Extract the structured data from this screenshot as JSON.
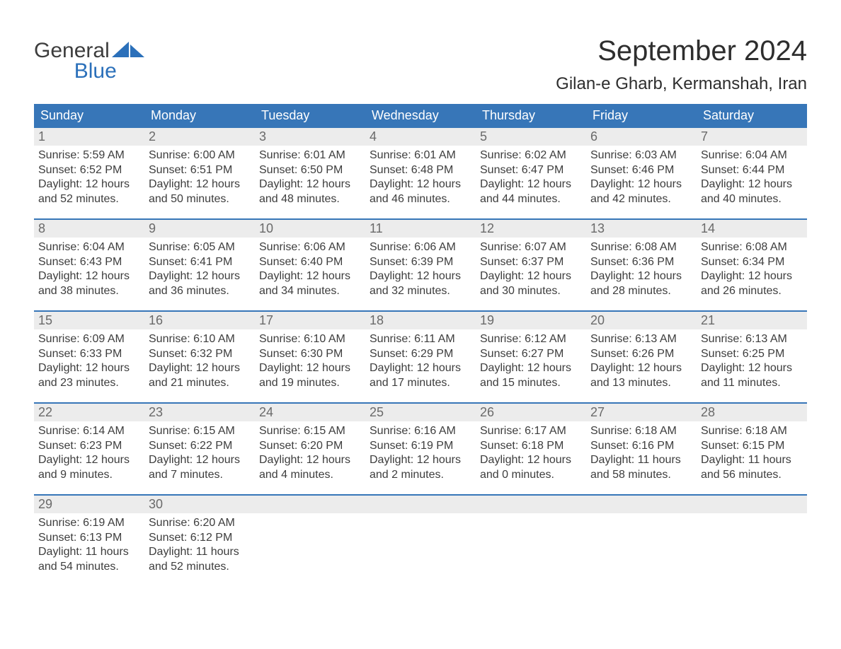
{
  "logo": {
    "word1": "General",
    "word2": "Blue"
  },
  "title": "September 2024",
  "location": "Gilan-e Gharb, Kermanshah, Iran",
  "colors": {
    "header_bg": "#3776b8",
    "daynum_bg": "#ececec",
    "text": "#3d3d3d",
    "white": "#ffffff"
  },
  "day_headers": [
    "Sunday",
    "Monday",
    "Tuesday",
    "Wednesday",
    "Thursday",
    "Friday",
    "Saturday"
  ],
  "weeks": [
    [
      {
        "n": "1",
        "sr": "Sunrise: 5:59 AM",
        "ss": "Sunset: 6:52 PM",
        "d1": "Daylight: 12 hours",
        "d2": "and 52 minutes."
      },
      {
        "n": "2",
        "sr": "Sunrise: 6:00 AM",
        "ss": "Sunset: 6:51 PM",
        "d1": "Daylight: 12 hours",
        "d2": "and 50 minutes."
      },
      {
        "n": "3",
        "sr": "Sunrise: 6:01 AM",
        "ss": "Sunset: 6:50 PM",
        "d1": "Daylight: 12 hours",
        "d2": "and 48 minutes."
      },
      {
        "n": "4",
        "sr": "Sunrise: 6:01 AM",
        "ss": "Sunset: 6:48 PM",
        "d1": "Daylight: 12 hours",
        "d2": "and 46 minutes."
      },
      {
        "n": "5",
        "sr": "Sunrise: 6:02 AM",
        "ss": "Sunset: 6:47 PM",
        "d1": "Daylight: 12 hours",
        "d2": "and 44 minutes."
      },
      {
        "n": "6",
        "sr": "Sunrise: 6:03 AM",
        "ss": "Sunset: 6:46 PM",
        "d1": "Daylight: 12 hours",
        "d2": "and 42 minutes."
      },
      {
        "n": "7",
        "sr": "Sunrise: 6:04 AM",
        "ss": "Sunset: 6:44 PM",
        "d1": "Daylight: 12 hours",
        "d2": "and 40 minutes."
      }
    ],
    [
      {
        "n": "8",
        "sr": "Sunrise: 6:04 AM",
        "ss": "Sunset: 6:43 PM",
        "d1": "Daylight: 12 hours",
        "d2": "and 38 minutes."
      },
      {
        "n": "9",
        "sr": "Sunrise: 6:05 AM",
        "ss": "Sunset: 6:41 PM",
        "d1": "Daylight: 12 hours",
        "d2": "and 36 minutes."
      },
      {
        "n": "10",
        "sr": "Sunrise: 6:06 AM",
        "ss": "Sunset: 6:40 PM",
        "d1": "Daylight: 12 hours",
        "d2": "and 34 minutes."
      },
      {
        "n": "11",
        "sr": "Sunrise: 6:06 AM",
        "ss": "Sunset: 6:39 PM",
        "d1": "Daylight: 12 hours",
        "d2": "and 32 minutes."
      },
      {
        "n": "12",
        "sr": "Sunrise: 6:07 AM",
        "ss": "Sunset: 6:37 PM",
        "d1": "Daylight: 12 hours",
        "d2": "and 30 minutes."
      },
      {
        "n": "13",
        "sr": "Sunrise: 6:08 AM",
        "ss": "Sunset: 6:36 PM",
        "d1": "Daylight: 12 hours",
        "d2": "and 28 minutes."
      },
      {
        "n": "14",
        "sr": "Sunrise: 6:08 AM",
        "ss": "Sunset: 6:34 PM",
        "d1": "Daylight: 12 hours",
        "d2": "and 26 minutes."
      }
    ],
    [
      {
        "n": "15",
        "sr": "Sunrise: 6:09 AM",
        "ss": "Sunset: 6:33 PM",
        "d1": "Daylight: 12 hours",
        "d2": "and 23 minutes."
      },
      {
        "n": "16",
        "sr": "Sunrise: 6:10 AM",
        "ss": "Sunset: 6:32 PM",
        "d1": "Daylight: 12 hours",
        "d2": "and 21 minutes."
      },
      {
        "n": "17",
        "sr": "Sunrise: 6:10 AM",
        "ss": "Sunset: 6:30 PM",
        "d1": "Daylight: 12 hours",
        "d2": "and 19 minutes."
      },
      {
        "n": "18",
        "sr": "Sunrise: 6:11 AM",
        "ss": "Sunset: 6:29 PM",
        "d1": "Daylight: 12 hours",
        "d2": "and 17 minutes."
      },
      {
        "n": "19",
        "sr": "Sunrise: 6:12 AM",
        "ss": "Sunset: 6:27 PM",
        "d1": "Daylight: 12 hours",
        "d2": "and 15 minutes."
      },
      {
        "n": "20",
        "sr": "Sunrise: 6:13 AM",
        "ss": "Sunset: 6:26 PM",
        "d1": "Daylight: 12 hours",
        "d2": "and 13 minutes."
      },
      {
        "n": "21",
        "sr": "Sunrise: 6:13 AM",
        "ss": "Sunset: 6:25 PM",
        "d1": "Daylight: 12 hours",
        "d2": "and 11 minutes."
      }
    ],
    [
      {
        "n": "22",
        "sr": "Sunrise: 6:14 AM",
        "ss": "Sunset: 6:23 PM",
        "d1": "Daylight: 12 hours",
        "d2": "and 9 minutes."
      },
      {
        "n": "23",
        "sr": "Sunrise: 6:15 AM",
        "ss": "Sunset: 6:22 PM",
        "d1": "Daylight: 12 hours",
        "d2": "and 7 minutes."
      },
      {
        "n": "24",
        "sr": "Sunrise: 6:15 AM",
        "ss": "Sunset: 6:20 PM",
        "d1": "Daylight: 12 hours",
        "d2": "and 4 minutes."
      },
      {
        "n": "25",
        "sr": "Sunrise: 6:16 AM",
        "ss": "Sunset: 6:19 PM",
        "d1": "Daylight: 12 hours",
        "d2": "and 2 minutes."
      },
      {
        "n": "26",
        "sr": "Sunrise: 6:17 AM",
        "ss": "Sunset: 6:18 PM",
        "d1": "Daylight: 12 hours",
        "d2": "and 0 minutes."
      },
      {
        "n": "27",
        "sr": "Sunrise: 6:18 AM",
        "ss": "Sunset: 6:16 PM",
        "d1": "Daylight: 11 hours",
        "d2": "and 58 minutes."
      },
      {
        "n": "28",
        "sr": "Sunrise: 6:18 AM",
        "ss": "Sunset: 6:15 PM",
        "d1": "Daylight: 11 hours",
        "d2": "and 56 minutes."
      }
    ],
    [
      {
        "n": "29",
        "sr": "Sunrise: 6:19 AM",
        "ss": "Sunset: 6:13 PM",
        "d1": "Daylight: 11 hours",
        "d2": "and 54 minutes."
      },
      {
        "n": "30",
        "sr": "Sunrise: 6:20 AM",
        "ss": "Sunset: 6:12 PM",
        "d1": "Daylight: 11 hours",
        "d2": "and 52 minutes."
      },
      null,
      null,
      null,
      null,
      null
    ]
  ]
}
